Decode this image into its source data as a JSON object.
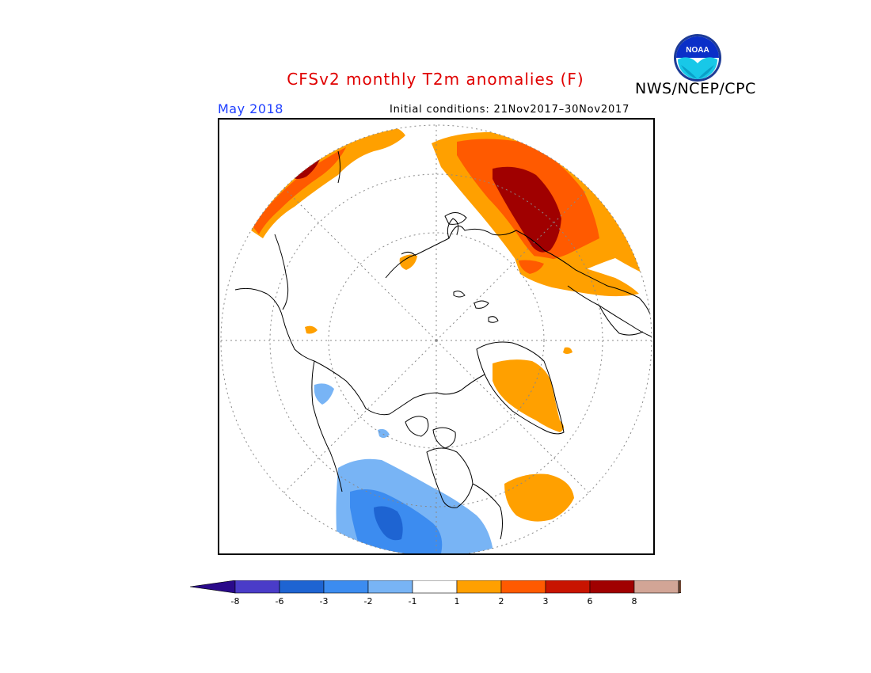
{
  "header": {
    "title": "CFSv2 monthly T2m anomalies (F)",
    "agency": "NWS/NCEP/CPC",
    "logo_text": "NOAA",
    "month": "May 2018",
    "initial_conditions": "Initial conditions: 21Nov2017–30Nov2017"
  },
  "map": {
    "projection": "north polar stereographic",
    "variable": "2m temperature anomaly",
    "units": "F"
  },
  "colorbar": {
    "tick_labels": [
      "-8",
      "-6",
      "-3",
      "-2",
      "-1",
      "1",
      "2",
      "3",
      "6",
      "8"
    ],
    "bins": [
      {
        "range": "< -8",
        "color": "#2a0a8a"
      },
      {
        "range": "-8 to -6",
        "color": "#4a3cc8"
      },
      {
        "range": "-6 to -3",
        "color": "#1e64d2"
      },
      {
        "range": "-3 to -2",
        "color": "#3c8cf0"
      },
      {
        "range": "-2 to -1",
        "color": "#78b4f5"
      },
      {
        "range": "-1 to 1",
        "color": "#ffffff"
      },
      {
        "range": "1 to 2",
        "color": "#ffa000"
      },
      {
        "range": "2 to 3",
        "color": "#ff5a00"
      },
      {
        "range": "3 to 6",
        "color": "#c81400"
      },
      {
        "range": "6 to 8",
        "color": "#a00000"
      },
      {
        "range": "> 8",
        "color": "#d2a596"
      },
      {
        "range": "beyond",
        "color": "#6e4632"
      }
    ]
  },
  "colors": {
    "title": "#e00000",
    "month": "#1f3fff",
    "ocean_fill": "#ffffff",
    "coastline": "#000000"
  }
}
